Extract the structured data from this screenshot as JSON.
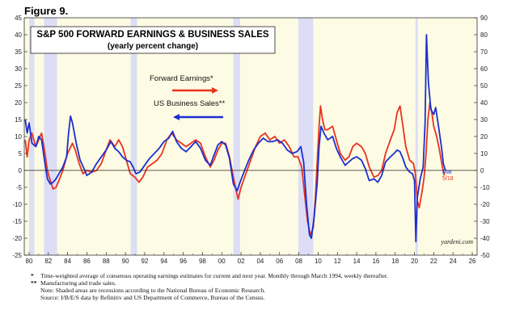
{
  "figure_label": "Figure 9.",
  "chart_data": {
    "type": "line",
    "title": "S&P 500 FORWARD EARNINGS & BUSINESS SALES",
    "subtitle": "(yearly percent change)",
    "xlabel": "",
    "ylabel": "",
    "xlim": [
      1979.5,
      2026.5
    ],
    "ylim_left": [
      -25,
      45
    ],
    "ylim_right": [
      -50,
      90
    ],
    "x_ticks": [
      "80",
      "82",
      "84",
      "86",
      "88",
      "90",
      "92",
      "94",
      "96",
      "98",
      "00",
      "02",
      "04",
      "06",
      "08",
      "10",
      "12",
      "14",
      "16",
      "18",
      "20",
      "22",
      "24",
      "26"
    ],
    "y_ticks_left": [
      "45",
      "40",
      "35",
      "30",
      "25",
      "20",
      "15",
      "10",
      "5",
      "0",
      "-5",
      "-10",
      "-15",
      "-20",
      "-25"
    ],
    "y_ticks_right": [
      "90",
      "80",
      "70",
      "60",
      "50",
      "40",
      "30",
      "20",
      "10",
      "0",
      "-10",
      "-20",
      "-30",
      "-40",
      "-50"
    ],
    "grid": false,
    "background": "#fdfbe3",
    "recession_color": "#dcdef6",
    "recessions": [
      [
        1980.0,
        1980.55
      ],
      [
        1981.55,
        1982.9
      ],
      [
        1990.55,
        1991.2
      ],
      [
        2001.2,
        2001.9
      ],
      [
        2007.95,
        2009.5
      ],
      [
        2020.1,
        2020.35
      ]
    ],
    "series": [
      {
        "name": "Forward Earnings*",
        "color": "#e8331f",
        "axis": "left",
        "points": [
          [
            1979.6,
            9
          ],
          [
            1979.8,
            4
          ],
          [
            1980.0,
            9
          ],
          [
            1980.3,
            11
          ],
          [
            1980.7,
            7
          ],
          [
            1981.0,
            9
          ],
          [
            1981.3,
            11
          ],
          [
            1981.6,
            6
          ],
          [
            1981.9,
            0
          ],
          [
            1982.2,
            -3
          ],
          [
            1982.5,
            -5.5
          ],
          [
            1982.8,
            -5
          ],
          [
            1983.1,
            -3
          ],
          [
            1983.5,
            0
          ],
          [
            1984.0,
            5
          ],
          [
            1984.5,
            8
          ],
          [
            1984.8,
            6
          ],
          [
            1985.2,
            2
          ],
          [
            1985.6,
            -1
          ],
          [
            1986.0,
            0
          ],
          [
            1986.5,
            -0.5
          ],
          [
            1987.0,
            0
          ],
          [
            1987.5,
            2
          ],
          [
            1988.0,
            6
          ],
          [
            1988.4,
            9
          ],
          [
            1988.9,
            7
          ],
          [
            1989.3,
            9
          ],
          [
            1989.7,
            7
          ],
          [
            1990.1,
            3
          ],
          [
            1990.5,
            -1
          ],
          [
            1991.0,
            -2
          ],
          [
            1991.4,
            -3.5
          ],
          [
            1991.8,
            -2
          ],
          [
            1992.3,
            1
          ],
          [
            1992.8,
            2
          ],
          [
            1993.3,
            3
          ],
          [
            1993.8,
            5
          ],
          [
            1994.3,
            9
          ],
          [
            1994.8,
            11
          ],
          [
            1995.3,
            9
          ],
          [
            1995.8,
            8
          ],
          [
            1996.3,
            7
          ],
          [
            1996.8,
            8
          ],
          [
            1997.3,
            9
          ],
          [
            1997.8,
            8
          ],
          [
            1998.3,
            4
          ],
          [
            1998.8,
            1
          ],
          [
            1999.2,
            3
          ],
          [
            1999.6,
            6
          ],
          [
            2000.0,
            8
          ],
          [
            2000.4,
            8
          ],
          [
            2000.8,
            4
          ],
          [
            2001.2,
            -2
          ],
          [
            2001.5,
            -6
          ],
          [
            2001.7,
            -8.5
          ],
          [
            2002.0,
            -5
          ],
          [
            2002.5,
            -1
          ],
          [
            2003.0,
            3
          ],
          [
            2003.5,
            7
          ],
          [
            2004.0,
            10
          ],
          [
            2004.5,
            11
          ],
          [
            2005.0,
            9
          ],
          [
            2005.5,
            10
          ],
          [
            2006.0,
            8
          ],
          [
            2006.5,
            9
          ],
          [
            2007.0,
            7
          ],
          [
            2007.5,
            4
          ],
          [
            2007.9,
            4
          ],
          [
            2008.3,
            1
          ],
          [
            2008.6,
            -7
          ],
          [
            2008.9,
            -15
          ],
          [
            2009.2,
            -19
          ],
          [
            2009.5,
            -17
          ],
          [
            2009.7,
            -9
          ],
          [
            2009.9,
            2
          ],
          [
            2010.1,
            13
          ],
          [
            2010.25,
            19
          ],
          [
            2010.45,
            15
          ],
          [
            2010.7,
            12
          ],
          [
            2011.0,
            12
          ],
          [
            2011.5,
            13
          ],
          [
            2011.9,
            9
          ],
          [
            2012.3,
            5
          ],
          [
            2012.8,
            3
          ],
          [
            2013.2,
            4
          ],
          [
            2013.6,
            7
          ],
          [
            2014.0,
            8
          ],
          [
            2014.5,
            7
          ],
          [
            2014.9,
            5
          ],
          [
            2015.3,
            1
          ],
          [
            2015.8,
            -2
          ],
          [
            2016.2,
            -1.5
          ],
          [
            2016.6,
            0
          ],
          [
            2017.0,
            5
          ],
          [
            2017.5,
            9
          ],
          [
            2017.9,
            12
          ],
          [
            2018.2,
            17
          ],
          [
            2018.5,
            19
          ],
          [
            2018.8,
            13
          ],
          [
            2019.1,
            7
          ],
          [
            2019.5,
            3
          ],
          [
            2019.9,
            2
          ],
          [
            2020.1,
            -1
          ],
          [
            2020.3,
            -9
          ],
          [
            2020.5,
            -11
          ],
          [
            2020.8,
            -6
          ],
          [
            2021.0,
            -2
          ],
          [
            2021.2,
            5
          ],
          [
            2021.4,
            15
          ],
          [
            2021.6,
            20
          ],
          [
            2021.8,
            17
          ],
          [
            2022.0,
            13
          ],
          [
            2022.3,
            10
          ],
          [
            2022.6,
            6
          ],
          [
            2022.9,
            1
          ],
          [
            2023.1,
            -1.5
          ]
        ]
      },
      {
        "name": "US Business Sales**",
        "color": "#1b2fd1",
        "axis": "right",
        "points": [
          [
            1979.6,
            30
          ],
          [
            1979.8,
            22
          ],
          [
            1980.0,
            28
          ],
          [
            1980.3,
            16
          ],
          [
            1980.7,
            14
          ],
          [
            1981.0,
            20
          ],
          [
            1981.3,
            18
          ],
          [
            1981.6,
            6
          ],
          [
            1981.9,
            -5
          ],
          [
            1982.2,
            -8
          ],
          [
            1982.5,
            -7
          ],
          [
            1982.8,
            -5
          ],
          [
            1983.1,
            -2
          ],
          [
            1983.5,
            2
          ],
          [
            1983.9,
            8
          ],
          [
            1984.1,
            22
          ],
          [
            1984.3,
            32
          ],
          [
            1984.5,
            28
          ],
          [
            1984.9,
            16
          ],
          [
            1985.3,
            6
          ],
          [
            1985.7,
            1
          ],
          [
            1986.0,
            -3
          ],
          [
            1986.5,
            -1
          ],
          [
            1987.0,
            4
          ],
          [
            1987.5,
            8
          ],
          [
            1988.0,
            12
          ],
          [
            1988.5,
            17
          ],
          [
            1988.9,
            13
          ],
          [
            1989.3,
            11
          ],
          [
            1989.7,
            8
          ],
          [
            1990.1,
            6
          ],
          [
            1990.5,
            5
          ],
          [
            1990.8,
            2
          ],
          [
            1991.1,
            -2
          ],
          [
            1991.5,
            -1
          ],
          [
            1992.0,
            3
          ],
          [
            1992.5,
            7
          ],
          [
            1993.0,
            10
          ],
          [
            1993.5,
            13
          ],
          [
            1994.0,
            17
          ],
          [
            1994.5,
            19
          ],
          [
            1994.9,
            23
          ],
          [
            1995.3,
            17
          ],
          [
            1995.8,
            13
          ],
          [
            1996.3,
            11
          ],
          [
            1996.8,
            14
          ],
          [
            1997.3,
            17
          ],
          [
            1997.8,
            13
          ],
          [
            1998.3,
            6
          ],
          [
            1998.8,
            3
          ],
          [
            1999.2,
            9
          ],
          [
            1999.6,
            15
          ],
          [
            2000.0,
            17
          ],
          [
            2000.4,
            15
          ],
          [
            2000.8,
            7
          ],
          [
            2001.2,
            -8
          ],
          [
            2001.6,
            -12
          ],
          [
            2001.9,
            -7
          ],
          [
            2002.3,
            -1
          ],
          [
            2002.8,
            6
          ],
          [
            2003.3,
            12
          ],
          [
            2003.8,
            16
          ],
          [
            2004.3,
            19
          ],
          [
            2004.8,
            17
          ],
          [
            2005.3,
            17
          ],
          [
            2005.8,
            18
          ],
          [
            2006.3,
            16
          ],
          [
            2006.8,
            12
          ],
          [
            2007.3,
            10
          ],
          [
            2007.8,
            11
          ],
          [
            2008.2,
            14
          ],
          [
            2008.5,
            5
          ],
          [
            2008.8,
            -20
          ],
          [
            2009.1,
            -38
          ],
          [
            2009.3,
            -40
          ],
          [
            2009.6,
            -27
          ],
          [
            2009.9,
            -8
          ],
          [
            2010.1,
            14
          ],
          [
            2010.3,
            26
          ],
          [
            2010.6,
            22
          ],
          [
            2011.0,
            18
          ],
          [
            2011.5,
            20
          ],
          [
            2011.9,
            13
          ],
          [
            2012.3,
            8
          ],
          [
            2012.8,
            3
          ],
          [
            2013.2,
            5
          ],
          [
            2013.6,
            7
          ],
          [
            2014.0,
            8
          ],
          [
            2014.5,
            6
          ],
          [
            2014.9,
            1
          ],
          [
            2015.3,
            -6
          ],
          [
            2015.8,
            -5
          ],
          [
            2016.2,
            -7
          ],
          [
            2016.6,
            -3
          ],
          [
            2017.0,
            5
          ],
          [
            2017.5,
            8
          ],
          [
            2017.9,
            10
          ],
          [
            2018.2,
            12
          ],
          [
            2018.5,
            11
          ],
          [
            2018.8,
            7
          ],
          [
            2019.1,
            2
          ],
          [
            2019.5,
            -1
          ],
          [
            2019.8,
            -2
          ],
          [
            2020.0,
            -6
          ],
          [
            2020.15,
            -42
          ],
          [
            2020.3,
            -16
          ],
          [
            2020.6,
            -5
          ],
          [
            2020.9,
            2
          ],
          [
            2021.1,
            28
          ],
          [
            2021.25,
            80
          ],
          [
            2021.45,
            52
          ],
          [
            2021.7,
            36
          ],
          [
            2022.0,
            33
          ],
          [
            2022.2,
            37
          ],
          [
            2022.5,
            26
          ],
          [
            2022.8,
            14
          ],
          [
            2023.0,
            4
          ],
          [
            2023.2,
            0
          ]
        ]
      }
    ],
    "legend": {
      "placement": "top-center",
      "entries": [
        "Forward Earnings*",
        "US Business Sales**"
      ]
    },
    "annotations": [
      {
        "text": "Mar",
        "color": "#1b2fd1"
      },
      {
        "text": "5/18",
        "color": "#e8331f"
      }
    ],
    "watermark": "yardeni.com"
  },
  "footnotes": [
    {
      "marker": "*",
      "text": "Time-weighted average of consensus operating earnings estimates for current and next year. Monthly through March 1994, weekly thereafter."
    },
    {
      "marker": "**",
      "text": "Manufacturing and trade sales."
    },
    {
      "marker": "",
      "text": "Note: Shaded areas are recessions according to the National Bureau of Economic Research."
    },
    {
      "marker": "",
      "text": "Source: I/B/E/S data by Refinitiv and US Department of Commerce, Bureau of the Census."
    }
  ]
}
